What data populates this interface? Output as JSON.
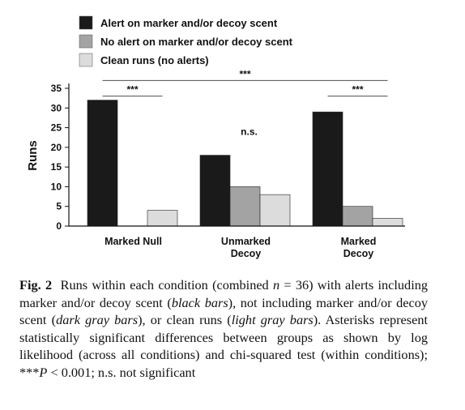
{
  "chart_data": {
    "type": "bar",
    "ylabel": "Runs",
    "ylim": [
      0,
      35
    ],
    "yticks": [
      0,
      5,
      10,
      15,
      20,
      25,
      30,
      35
    ],
    "categories": [
      "Marked Null",
      "Unmarked Decoy",
      "Marked Decoy"
    ],
    "category_lines": [
      [
        "Marked Null"
      ],
      [
        "Unmarked",
        "Decoy"
      ],
      [
        "Marked",
        "Decoy"
      ]
    ],
    "series": [
      {
        "name": "Alert on marker and/or decoy scent",
        "color": "#1a1a1a",
        "values": [
          32,
          18,
          29
        ]
      },
      {
        "name": "No alert on marker and/or decoy scent",
        "color": "#a3a3a3",
        "values": [
          0,
          10,
          5
        ]
      },
      {
        "name": "Clean runs (no alerts)",
        "color": "#dcdcdc",
        "values": [
          4,
          8,
          2
        ]
      }
    ],
    "legend_position": "top-left",
    "grid": false,
    "annotations": [
      {
        "label": "***",
        "from": {
          "category": 0,
          "series": 0
        },
        "to": {
          "category": 2,
          "series": 2
        },
        "level": 37
      },
      {
        "label": "***",
        "from": {
          "category": 0,
          "series": 0
        },
        "to": {
          "category": 0,
          "series": 2
        },
        "level": 33
      },
      {
        "label": "n.s.",
        "category": 1,
        "level": 24
      },
      {
        "label": "***",
        "from": {
          "category": 2,
          "series": 0
        },
        "to": {
          "category": 2,
          "series": 2
        },
        "level": 33
      }
    ]
  },
  "caption": {
    "fig_label": "Fig. 2",
    "p1": "Runs within each condition (combined ",
    "n_var": "n",
    "n_val": " = 36) with alerts including marker and/or decoy scent (",
    "black": "black bars",
    "p2": "), not including marker and/or decoy scent (",
    "dark": "dark gray bars",
    "p3": "), or clean runs (",
    "light": "light gray bars",
    "p4": "). Asterisks represent statistically significant differences between groups as shown by log likelihood (across all conditions) and chi-squared test (within conditions); ***",
    "p_var": "P",
    "p5": " < 0.001; n.s. not significant"
  }
}
